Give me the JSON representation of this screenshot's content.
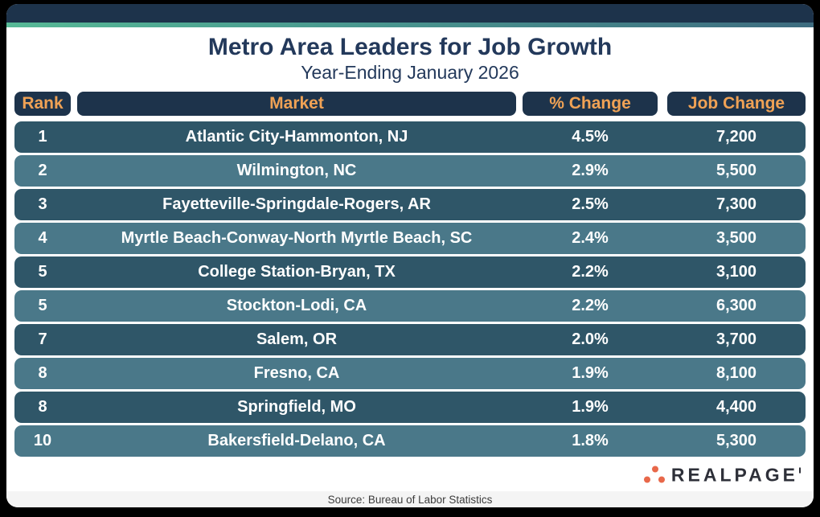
{
  "chart_data": {
    "type": "table",
    "title": "Metro Area Leaders for Job Growth",
    "subtitle": "Year-Ending January 2026",
    "columns": [
      "Rank",
      "Market",
      "% Change",
      "Job Change"
    ],
    "rows": [
      [
        "1",
        "Atlantic City-Hammonton, NJ",
        "4.5%",
        "7,200"
      ],
      [
        "2",
        "Wilmington, NC",
        "2.9%",
        "5,500"
      ],
      [
        "3",
        "Fayetteville-Springdale-Rogers, AR",
        "2.5%",
        "7,300"
      ],
      [
        "4",
        "Myrtle Beach-Conway-North Myrtle Beach, SC",
        "2.4%",
        "3,500"
      ],
      [
        "5",
        "College Station-Bryan, TX",
        "2.2%",
        "3,100"
      ],
      [
        "5",
        "Stockton-Lodi, CA",
        "2.2%",
        "6,300"
      ],
      [
        "7",
        "Salem, OR",
        "2.0%",
        "3,700"
      ],
      [
        "8",
        "Fresno, CA",
        "1.9%",
        "8,100"
      ],
      [
        "8",
        "Springfield, MO",
        "1.9%",
        "4,400"
      ],
      [
        "10",
        "Bakersfield-Delano, CA",
        "1.8%",
        "5,300"
      ]
    ],
    "source": "Source: Bureau of Labor Statistics",
    "layout_hints": {
      "row_style": "alternating pill rows, dark then light",
      "header_style": "navy pills with orange text"
    }
  },
  "branding": {
    "logo_text": "REALPAGE"
  },
  "colors": {
    "navy": "#1d334b",
    "title_text": "#23395b",
    "header_text_orange": "#f0a255",
    "row_dark": "#2f5668",
    "row_light": "#4a7889",
    "accent_gradient_left": "#57b996",
    "accent_gradient_right": "#3e6c80",
    "logo_dot_orange": "#e8684a",
    "source_bar_bg": "#f4f4f4"
  }
}
